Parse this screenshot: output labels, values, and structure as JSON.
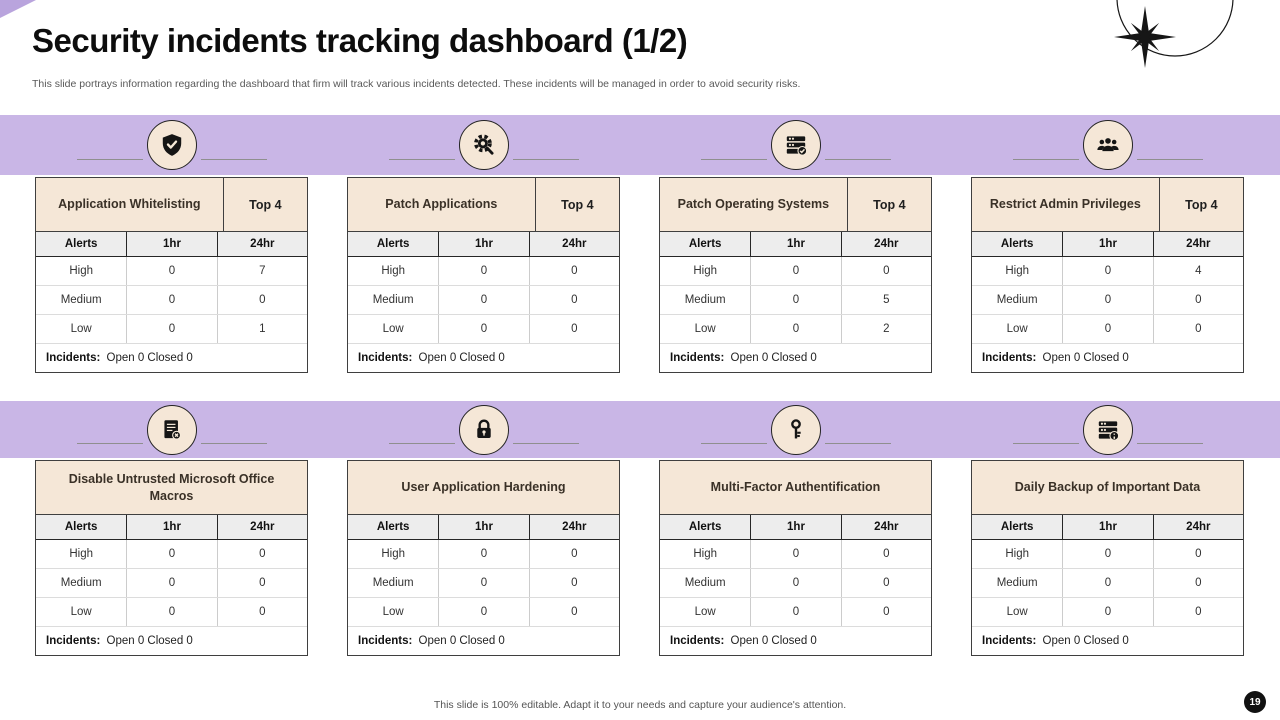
{
  "slide": {
    "title": "Security incidents tracking dashboard (1/2)",
    "subtitle": "This slide portrays information regarding the dashboard that firm will track various incidents detected. These incidents will be managed in order to avoid security risks.",
    "footer": "This slide is 100% editable. Adapt it to your needs and capture your audience's attention.",
    "page_number": "19"
  },
  "colors": {
    "band": "#c9b6e6",
    "header_bg": "#f5e7d7",
    "ink": "#1a1a1a"
  },
  "common": {
    "top4_label": "Top 4",
    "columns": [
      "Alerts",
      "1hr",
      "24hr"
    ],
    "incidents_label": "Incidents:",
    "incidents_value": "Open 0 Closed 0"
  },
  "tables": [
    {
      "title": "Application Whitelisting",
      "icon": "shield-check-icon",
      "top4": true,
      "rows": [
        [
          "High",
          "0",
          "7"
        ],
        [
          "Medium",
          "0",
          "0"
        ],
        [
          "Low",
          "0",
          "1"
        ]
      ]
    },
    {
      "title": "Patch Applications",
      "icon": "gear-search-icon",
      "top4": true,
      "rows": [
        [
          "High",
          "0",
          "0"
        ],
        [
          "Medium",
          "0",
          "0"
        ],
        [
          "Low",
          "0",
          "0"
        ]
      ]
    },
    {
      "title": "Patch Operating Systems",
      "icon": "server-check-icon",
      "top4": true,
      "rows": [
        [
          "High",
          "0",
          "0"
        ],
        [
          "Medium",
          "0",
          "5"
        ],
        [
          "Low",
          "0",
          "2"
        ]
      ]
    },
    {
      "title": "Restrict Admin Privileges",
      "icon": "people-group-icon",
      "top4": true,
      "rows": [
        [
          "High",
          "0",
          "4"
        ],
        [
          "Medium",
          "0",
          "0"
        ],
        [
          "Low",
          "0",
          "0"
        ]
      ]
    },
    {
      "title": "Disable Untrusted Microsoft Office Macros",
      "icon": "document-x-icon",
      "top4": false,
      "rows": [
        [
          "High",
          "0",
          "0"
        ],
        [
          "Medium",
          "0",
          "0"
        ],
        [
          "Low",
          "0",
          "0"
        ]
      ]
    },
    {
      "title": "User Application Hardening",
      "icon": "padlock-icon",
      "top4": false,
      "rows": [
        [
          "High",
          "0",
          "0"
        ],
        [
          "Medium",
          "0",
          "0"
        ],
        [
          "Low",
          "0",
          "0"
        ]
      ]
    },
    {
      "title": "Multi-Factor Authentification",
      "icon": "key-icon",
      "top4": false,
      "rows": [
        [
          "High",
          "0",
          "0"
        ],
        [
          "Medium",
          "0",
          "0"
        ],
        [
          "Low",
          "0",
          "0"
        ]
      ]
    },
    {
      "title": "Daily Backup of Important Data",
      "icon": "server-info-icon",
      "top4": false,
      "rows": [
        [
          "High",
          "0",
          "0"
        ],
        [
          "Medium",
          "0",
          "0"
        ],
        [
          "Low",
          "0",
          "0"
        ]
      ]
    }
  ]
}
